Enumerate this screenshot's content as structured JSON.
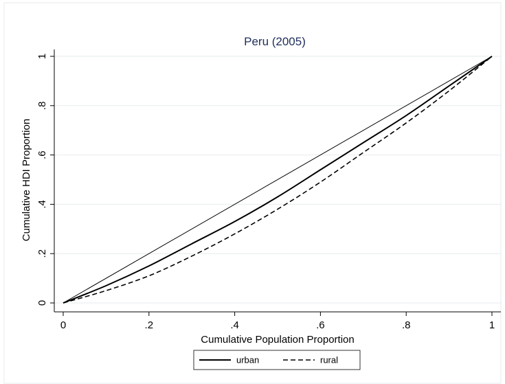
{
  "chart_data": {
    "type": "line",
    "title": "Peru (2005)",
    "xlabel": "Cumulative Population Proportion",
    "ylabel": "Cumulative HDI Proportion",
    "xlim": [
      0,
      1
    ],
    "ylim": [
      0,
      1
    ],
    "xticks": [
      0,
      0.2,
      0.4,
      0.6,
      0.8,
      1
    ],
    "xtick_labels": [
      "0",
      ".2",
      ".4",
      ".6",
      ".8",
      "1"
    ],
    "yticks": [
      0,
      0.2,
      0.4,
      0.6,
      0.8,
      1
    ],
    "ytick_labels": [
      "0",
      ".2",
      ".4",
      ".6",
      ".8",
      "1"
    ],
    "grid": true,
    "legend": "bottom",
    "series": [
      {
        "name": "",
        "role": "equality-line",
        "style": "solid-thin",
        "x": [
          0,
          1
        ],
        "y": [
          0,
          1
        ]
      },
      {
        "name": "urban",
        "style": "solid",
        "x": [
          0,
          0.1,
          0.2,
          0.3,
          0.4,
          0.5,
          0.6,
          0.7,
          0.8,
          0.9,
          1
        ],
        "y": [
          0,
          0.07,
          0.15,
          0.24,
          0.33,
          0.43,
          0.54,
          0.65,
          0.76,
          0.88,
          1
        ]
      },
      {
        "name": "rural",
        "style": "dashed",
        "x": [
          0,
          0.1,
          0.2,
          0.3,
          0.4,
          0.5,
          0.6,
          0.7,
          0.8,
          0.9,
          1
        ],
        "y": [
          0,
          0.05,
          0.11,
          0.19,
          0.28,
          0.38,
          0.49,
          0.61,
          0.73,
          0.86,
          1
        ]
      }
    ]
  },
  "colors": {
    "background": "#ffffff",
    "title": "#1e2d5a",
    "gridline": "#e6ebee",
    "axis": "#000000",
    "line": "#000000"
  }
}
